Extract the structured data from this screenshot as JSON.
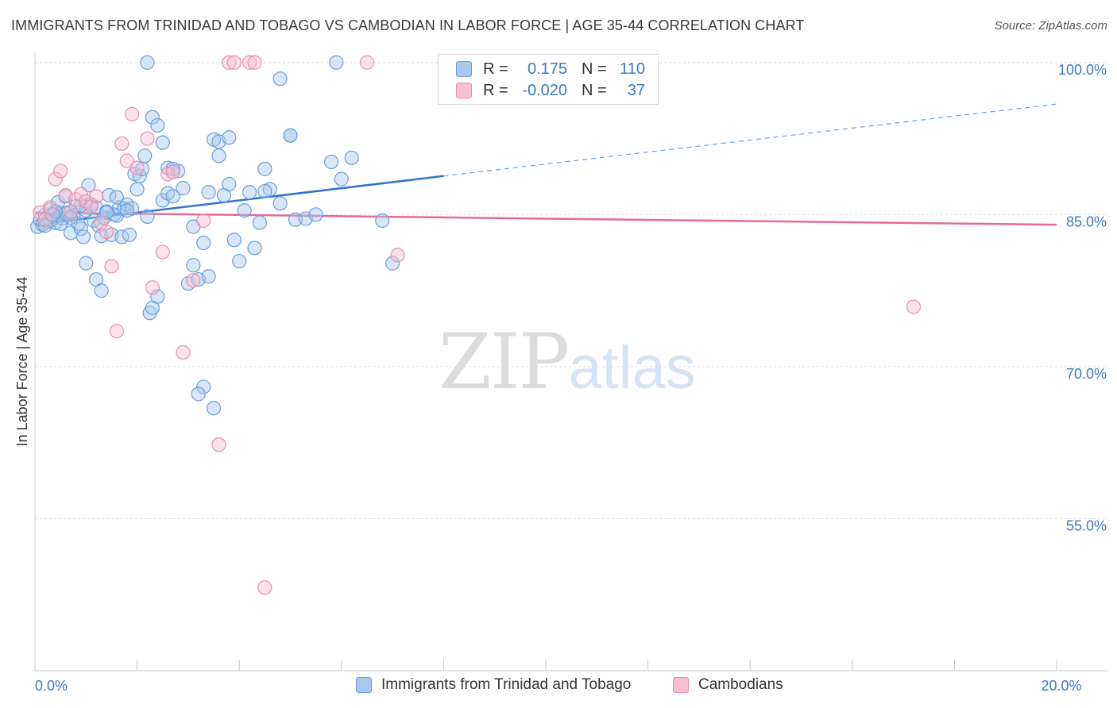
{
  "title": "IMMIGRANTS FROM TRINIDAD AND TOBAGO VS CAMBODIAN IN LABOR FORCE | AGE 35-44 CORRELATION CHART",
  "source": "Source: ZipAtlas.com",
  "watermark": {
    "zip": "ZIP",
    "atlas": "atlas"
  },
  "legend": {
    "rows": [
      {
        "r_label": "R =",
        "r_value": "0.175",
        "n_label": "N =",
        "n_value": "110",
        "color": "#a9c8ee",
        "border": "#6a9fdc"
      },
      {
        "r_label": "R =",
        "r_value": "-0.020",
        "n_label": "N =",
        "n_value": "37",
        "color": "#f7bfd0",
        "border": "#e890ac"
      }
    ]
  },
  "bottom_legend": [
    {
      "label": "Immigrants from Trinidad and Tobago",
      "color": "#a9c8ee",
      "border": "#6a9fdc"
    },
    {
      "label": "Cambodians",
      "color": "#f7bfd0",
      "border": "#e890ac"
    }
  ],
  "chart_data": {
    "type": "scatter",
    "title": "IMMIGRANTS FROM TRINIDAD AND TOBAGO VS CAMBODIAN IN LABOR FORCE | AGE 35-44 CORRELATION CHART",
    "xlabel": "",
    "ylabel": "In Labor Force | Age 35-44",
    "xlim": [
      0,
      20
    ],
    "ylim": [
      40,
      101.5
    ],
    "x_ticks": [
      {
        "value": 0,
        "label": "0.0%"
      },
      {
        "value": 20,
        "label": "20.0%"
      }
    ],
    "y_ticks": [
      {
        "value": 55,
        "label": "55.0%"
      },
      {
        "value": 70,
        "label": "70.0%"
      },
      {
        "value": 85,
        "label": "85.0%"
      },
      {
        "value": 100,
        "label": "100.0%"
      }
    ],
    "grid": true,
    "legend_position": "top-center",
    "series": [
      {
        "name": "Immigrants from Trinidad and Tobago",
        "color": "#6a9fdc",
        "fill": "rgba(169,200,238,0.45)",
        "trend": {
          "x0": 0,
          "y0": 84.0,
          "x1": 8.0,
          "y1": 88.8,
          "dashed_to_x": 20,
          "dashed_to_y": 95.9
        },
        "points": [
          [
            0.05,
            83.8
          ],
          [
            0.1,
            84.5
          ],
          [
            0.15,
            84.0
          ],
          [
            0.2,
            85.0
          ],
          [
            0.25,
            84.3
          ],
          [
            0.3,
            85.5
          ],
          [
            0.35,
            84.8
          ],
          [
            0.4,
            84.2
          ],
          [
            0.45,
            86.2
          ],
          [
            0.5,
            85.1
          ],
          [
            0.55,
            84.6
          ],
          [
            0.6,
            86.8
          ],
          [
            0.65,
            85.2
          ],
          [
            0.7,
            83.2
          ],
          [
            0.75,
            84.9
          ],
          [
            0.8,
            85.8
          ],
          [
            0.85,
            84.1
          ],
          [
            0.9,
            83.6
          ],
          [
            0.95,
            82.8
          ],
          [
            1.0,
            85.4
          ],
          [
            1.05,
            87.9
          ],
          [
            1.1,
            86.0
          ],
          [
            1.15,
            84.4
          ],
          [
            1.2,
            85.7
          ],
          [
            1.25,
            83.9
          ],
          [
            1.3,
            82.9
          ],
          [
            1.35,
            84.7
          ],
          [
            1.4,
            85.3
          ],
          [
            1.45,
            86.9
          ],
          [
            1.5,
            83.0
          ],
          [
            1.55,
            85.0
          ],
          [
            1.6,
            84.9
          ],
          [
            1.65,
            85.7
          ],
          [
            1.7,
            82.8
          ],
          [
            1.75,
            85.6
          ],
          [
            1.8,
            86.0
          ],
          [
            1.85,
            83.0
          ],
          [
            1.9,
            85.6
          ],
          [
            1.95,
            89.0
          ],
          [
            2.0,
            87.5
          ],
          [
            2.05,
            88.8
          ],
          [
            2.1,
            89.5
          ],
          [
            2.15,
            90.8
          ],
          [
            2.2,
            84.8
          ],
          [
            2.25,
            75.3
          ],
          [
            2.3,
            75.8
          ],
          [
            2.4,
            76.9
          ],
          [
            2.5,
            86.4
          ],
          [
            2.6,
            87.1
          ],
          [
            2.7,
            86.8
          ],
          [
            2.8,
            89.3
          ],
          [
            2.9,
            87.6
          ],
          [
            3.0,
            78.2
          ],
          [
            3.1,
            80.0
          ],
          [
            3.2,
            78.6
          ],
          [
            3.3,
            82.2
          ],
          [
            3.4,
            87.2
          ],
          [
            3.5,
            92.4
          ],
          [
            3.6,
            90.8
          ],
          [
            3.7,
            86.9
          ],
          [
            3.8,
            88.0
          ],
          [
            3.9,
            82.5
          ],
          [
            4.0,
            80.4
          ],
          [
            4.1,
            85.4
          ],
          [
            4.2,
            87.2
          ],
          [
            4.3,
            81.7
          ],
          [
            4.4,
            84.2
          ],
          [
            4.5,
            89.5
          ],
          [
            4.6,
            87.5
          ],
          [
            4.8,
            86.1
          ],
          [
            5.0,
            92.8
          ],
          [
            5.1,
            84.5
          ],
          [
            5.3,
            84.6
          ],
          [
            5.5,
            85.0
          ],
          [
            5.8,
            90.2
          ],
          [
            6.0,
            88.5
          ],
          [
            6.2,
            90.6
          ],
          [
            6.8,
            84.4
          ],
          [
            7.0,
            80.2
          ],
          [
            1.0,
            80.2
          ],
          [
            1.2,
            78.6
          ],
          [
            1.3,
            77.5
          ],
          [
            2.3,
            94.6
          ],
          [
            2.4,
            93.8
          ],
          [
            2.5,
            92.1
          ],
          [
            2.6,
            89.6
          ],
          [
            2.7,
            89.5
          ],
          [
            0.5,
            84.1
          ],
          [
            0.6,
            85.1
          ],
          [
            0.3,
            84.4
          ],
          [
            0.2,
            83.9
          ],
          [
            0.4,
            85.3
          ],
          [
            3.6,
            92.2
          ],
          [
            3.8,
            92.6
          ],
          [
            5.0,
            92.8
          ],
          [
            3.3,
            68.0
          ],
          [
            3.2,
            67.3
          ],
          [
            3.5,
            65.9
          ],
          [
            2.2,
            100.0
          ],
          [
            5.9,
            100.0
          ],
          [
            4.8,
            98.4
          ],
          [
            3.1,
            83.8
          ],
          [
            3.4,
            78.9
          ],
          [
            1.6,
            86.7
          ],
          [
            0.9,
            85.9
          ],
          [
            1.8,
            85.4
          ],
          [
            0.7,
            84.7
          ],
          [
            4.5,
            87.3
          ],
          [
            1.4,
            85.2
          ],
          [
            0.35,
            85.0
          ]
        ]
      },
      {
        "name": "Cambodians",
        "color": "#e890ac",
        "fill": "rgba(247,191,208,0.45)",
        "trend": {
          "x0": 0,
          "y0": 85.2,
          "x1": 20,
          "y1": 84.0
        },
        "points": [
          [
            0.1,
            85.2
          ],
          [
            0.2,
            84.5
          ],
          [
            0.3,
            85.7
          ],
          [
            0.4,
            88.5
          ],
          [
            0.5,
            89.3
          ],
          [
            0.6,
            86.9
          ],
          [
            0.7,
            85.3
          ],
          [
            0.8,
            86.5
          ],
          [
            0.9,
            87.0
          ],
          [
            1.0,
            86.3
          ],
          [
            1.1,
            85.8
          ],
          [
            1.2,
            86.8
          ],
          [
            1.3,
            84.2
          ],
          [
            1.4,
            83.3
          ],
          [
            1.5,
            79.9
          ],
          [
            1.6,
            73.5
          ],
          [
            1.7,
            92.0
          ],
          [
            1.8,
            90.3
          ],
          [
            1.9,
            94.9
          ],
          [
            2.0,
            89.6
          ],
          [
            2.2,
            92.5
          ],
          [
            2.3,
            77.8
          ],
          [
            2.5,
            81.3
          ],
          [
            2.6,
            89.0
          ],
          [
            2.7,
            89.2
          ],
          [
            2.9,
            71.4
          ],
          [
            3.1,
            78.5
          ],
          [
            3.3,
            84.4
          ],
          [
            3.6,
            62.3
          ],
          [
            3.8,
            100.0
          ],
          [
            3.9,
            100.0
          ],
          [
            4.2,
            100.0
          ],
          [
            4.3,
            100.0
          ],
          [
            4.5,
            48.2
          ],
          [
            6.5,
            100.0
          ],
          [
            7.1,
            81.0
          ],
          [
            17.2,
            75.9
          ]
        ]
      }
    ]
  }
}
